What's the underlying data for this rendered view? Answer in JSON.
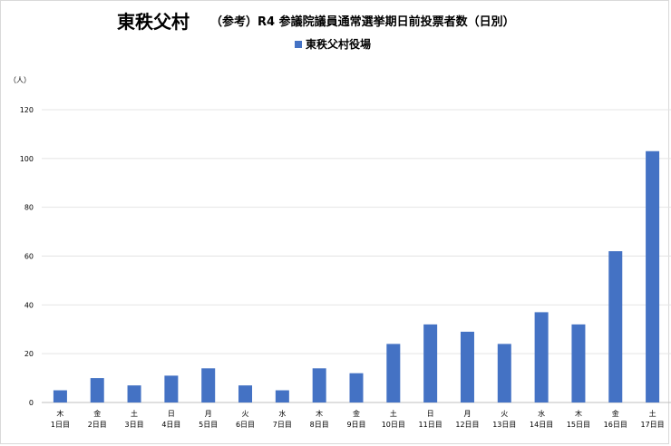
{
  "chart_data": {
    "type": "bar",
    "title": "東秩父村",
    "subtitle": "（参考）R4 参議院議員通常選挙期日前投票者数（日別）",
    "unit_label": "（人）",
    "legend_position": "top",
    "grid": true,
    "ylim": [
      0,
      120
    ],
    "y_ticks": [
      0,
      20,
      40,
      60,
      80,
      100,
      120
    ],
    "categories": [
      {
        "weekday": "木",
        "day": "1日目"
      },
      {
        "weekday": "金",
        "day": "2日目"
      },
      {
        "weekday": "土",
        "day": "3日目"
      },
      {
        "weekday": "日",
        "day": "4日目"
      },
      {
        "weekday": "月",
        "day": "5日目"
      },
      {
        "weekday": "火",
        "day": "6日目"
      },
      {
        "weekday": "水",
        "day": "7日目"
      },
      {
        "weekday": "木",
        "day": "8日目"
      },
      {
        "weekday": "金",
        "day": "9日目"
      },
      {
        "weekday": "土",
        "day": "10日目"
      },
      {
        "weekday": "日",
        "day": "11日目"
      },
      {
        "weekday": "月",
        "day": "12日目"
      },
      {
        "weekday": "火",
        "day": "13日目"
      },
      {
        "weekday": "水",
        "day": "14日目"
      },
      {
        "weekday": "木",
        "day": "15日目"
      },
      {
        "weekday": "金",
        "day": "16日目"
      },
      {
        "weekday": "土",
        "day": "17日目"
      }
    ],
    "series": [
      {
        "name": "東秩父村役場",
        "color": "#4472c4",
        "values": [
          5,
          10,
          7,
          11,
          14,
          7,
          5,
          14,
          12,
          24,
          32,
          29,
          24,
          37,
          32,
          62,
          103
        ]
      }
    ]
  }
}
